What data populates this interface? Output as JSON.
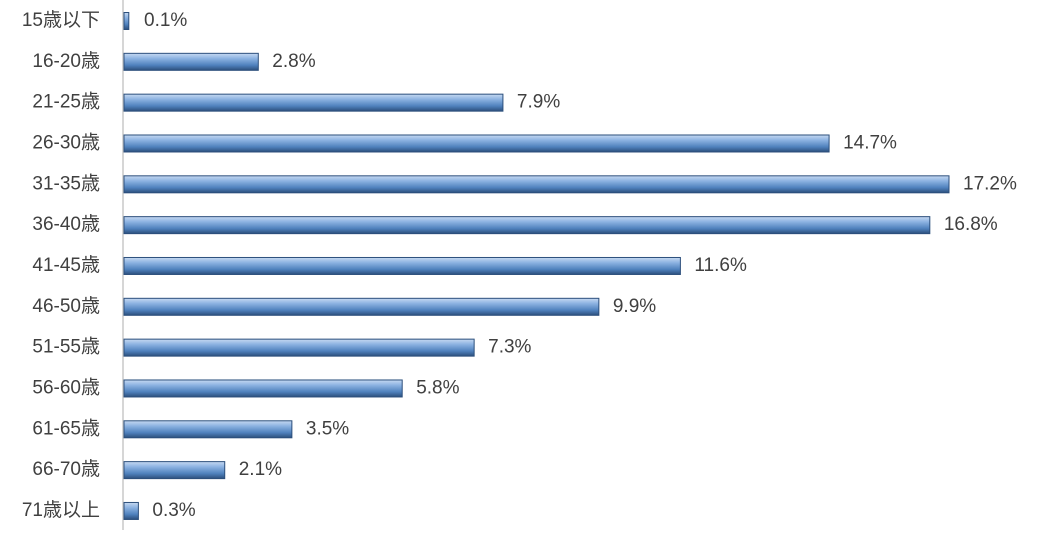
{
  "chart_data": {
    "type": "bar",
    "orientation": "horizontal",
    "categories": [
      "15歳以下",
      "16-20歳",
      "21-25歳",
      "26-30歳",
      "31-35歳",
      "36-40歳",
      "41-45歳",
      "46-50歳",
      "51-55歳",
      "56-60歳",
      "61-65歳",
      "66-70歳",
      "71歳以上"
    ],
    "values": [
      0.1,
      2.8,
      7.9,
      14.7,
      17.2,
      16.8,
      11.6,
      9.9,
      7.3,
      5.8,
      3.5,
      2.1,
      0.3
    ],
    "value_labels": [
      "0.1%",
      "2.8%",
      "7.9%",
      "14.7%",
      "17.2%",
      "16.8%",
      "11.6%",
      "9.9%",
      "7.3%",
      "5.8%",
      "3.5%",
      "2.1%",
      "0.3%"
    ],
    "color": "#4f81bd"
  }
}
